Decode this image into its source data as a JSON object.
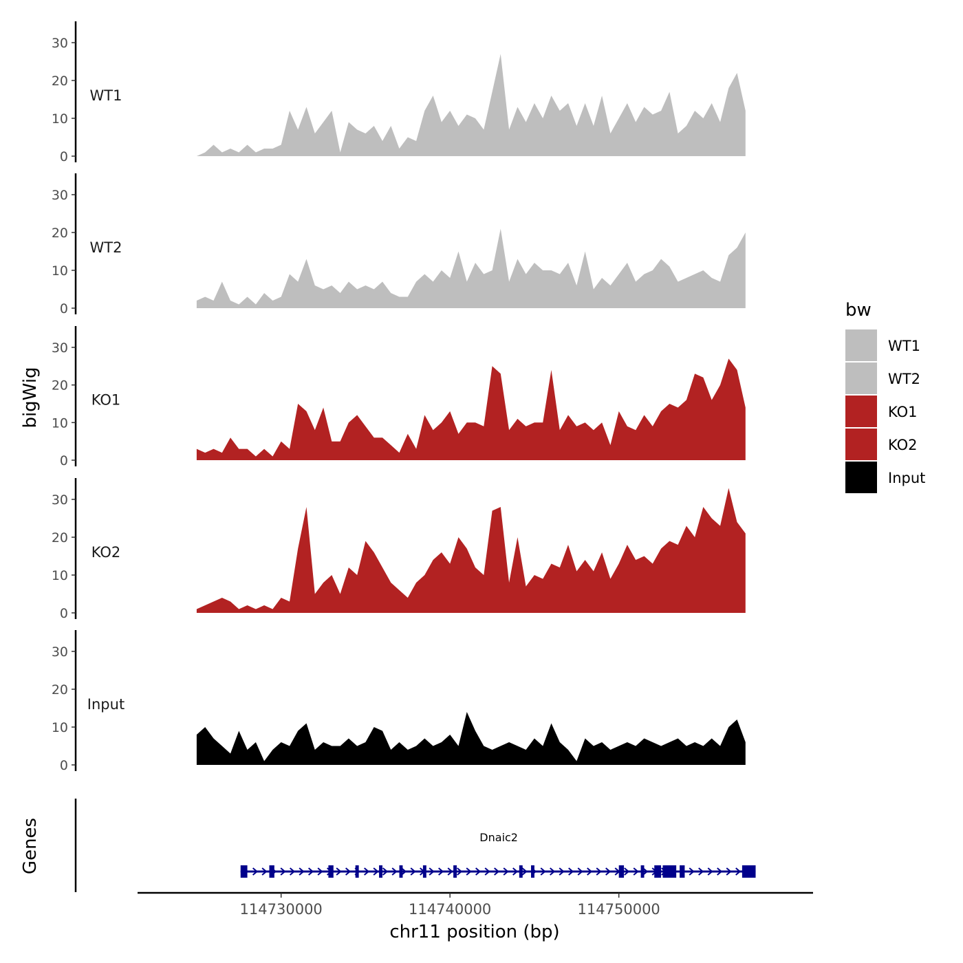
{
  "chart_data": {
    "type": "area",
    "xlabel": "chr11 position (bp)",
    "ylabel": "bigWig",
    "genes_label": "Genes",
    "x_range": [
      114725000,
      114757500
    ],
    "x_axis_range": [
      114721500,
      114761500
    ],
    "x_ticks": [
      114730000,
      114740000,
      114750000
    ],
    "x_tick_labels": [
      "114730000",
      "114740000",
      "114750000"
    ],
    "ylim": [
      0,
      35
    ],
    "y_ticks": [
      0,
      10,
      20,
      30
    ],
    "y_tick_labels": [
      "0",
      "10",
      "20",
      "30"
    ],
    "legend": {
      "title": "bw",
      "entries": [
        {
          "label": "WT1",
          "color": "#bebebe"
        },
        {
          "label": "WT2",
          "color": "#bebebe"
        },
        {
          "label": "KO1",
          "color": "#b22222"
        },
        {
          "label": "KO2",
          "color": "#b22222"
        },
        {
          "label": "Input",
          "color": "#000000"
        }
      ]
    },
    "series": [
      {
        "name": "WT1",
        "color": "#bebebe",
        "x": [
          114725000,
          114725500,
          114726000,
          114726500,
          114727000,
          114727500,
          114728000,
          114728500,
          114729000,
          114729500,
          114730000,
          114730500,
          114731000,
          114731500,
          114732000,
          114732500,
          114733000,
          114733500,
          114734000,
          114734500,
          114735000,
          114735500,
          114736000,
          114736500,
          114737000,
          114737500,
          114738000,
          114738500,
          114739000,
          114739500,
          114740000,
          114740500,
          114741000,
          114741500,
          114742000,
          114742500,
          114743000,
          114743500,
          114744000,
          114744500,
          114745000,
          114745500,
          114746000,
          114746500,
          114747000,
          114747500,
          114748000,
          114748500,
          114749000,
          114749500,
          114750000,
          114750500,
          114751000,
          114751500,
          114752000,
          114752500,
          114753000,
          114753500,
          114754000,
          114754500,
          114755000,
          114755500,
          114756000,
          114756500,
          114757000,
          114757500
        ],
        "values": [
          0,
          1,
          3,
          1,
          2,
          1,
          3,
          1,
          2,
          2,
          3,
          12,
          7,
          13,
          6,
          9,
          12,
          1,
          9,
          7,
          6,
          8,
          4,
          8,
          2,
          5,
          4,
          12,
          16,
          9,
          12,
          8,
          11,
          10,
          7,
          17,
          27,
          7,
          13,
          9,
          14,
          10,
          16,
          12,
          14,
          8,
          14,
          8,
          16,
          6,
          10,
          14,
          9,
          13,
          11,
          12,
          17,
          6,
          8,
          12,
          10,
          14,
          9,
          18,
          22,
          12
        ]
      },
      {
        "name": "WT2",
        "color": "#bebebe",
        "x": [
          114725000,
          114725500,
          114726000,
          114726500,
          114727000,
          114727500,
          114728000,
          114728500,
          114729000,
          114729500,
          114730000,
          114730500,
          114731000,
          114731500,
          114732000,
          114732500,
          114733000,
          114733500,
          114734000,
          114734500,
          114735000,
          114735500,
          114736000,
          114736500,
          114737000,
          114737500,
          114738000,
          114738500,
          114739000,
          114739500,
          114740000,
          114740500,
          114741000,
          114741500,
          114742000,
          114742500,
          114743000,
          114743500,
          114744000,
          114744500,
          114745000,
          114745500,
          114746000,
          114746500,
          114747000,
          114747500,
          114748000,
          114748500,
          114749000,
          114749500,
          114750000,
          114750500,
          114751000,
          114751500,
          114752000,
          114752500,
          114753000,
          114753500,
          114754000,
          114754500,
          114755000,
          114755500,
          114756000,
          114756500,
          114757000,
          114757500
        ],
        "values": [
          2,
          3,
          2,
          7,
          2,
          1,
          3,
          1,
          4,
          2,
          3,
          9,
          7,
          13,
          6,
          5,
          6,
          4,
          7,
          5,
          6,
          5,
          7,
          4,
          3,
          3,
          7,
          9,
          7,
          10,
          8,
          15,
          7,
          12,
          9,
          10,
          21,
          7,
          13,
          9,
          12,
          10,
          10,
          9,
          12,
          6,
          15,
          5,
          8,
          6,
          9,
          12,
          7,
          9,
          10,
          13,
          11,
          7,
          8,
          9,
          10,
          8,
          7,
          14,
          16,
          20
        ]
      },
      {
        "name": "KO1",
        "color": "#b22222",
        "x": [
          114725000,
          114725500,
          114726000,
          114726500,
          114727000,
          114727500,
          114728000,
          114728500,
          114729000,
          114729500,
          114730000,
          114730500,
          114731000,
          114731500,
          114732000,
          114732500,
          114733000,
          114733500,
          114734000,
          114734500,
          114735000,
          114735500,
          114736000,
          114736500,
          114737000,
          114737500,
          114738000,
          114738500,
          114739000,
          114739500,
          114740000,
          114740500,
          114741000,
          114741500,
          114742000,
          114742500,
          114743000,
          114743500,
          114744000,
          114744500,
          114745000,
          114745500,
          114746000,
          114746500,
          114747000,
          114747500,
          114748000,
          114748500,
          114749000,
          114749500,
          114750000,
          114750500,
          114751000,
          114751500,
          114752000,
          114752500,
          114753000,
          114753500,
          114754000,
          114754500,
          114755000,
          114755500,
          114756000,
          114756500,
          114757000,
          114757500
        ],
        "values": [
          3,
          2,
          3,
          2,
          6,
          3,
          3,
          1,
          3,
          1,
          5,
          3,
          15,
          13,
          8,
          14,
          5,
          5,
          10,
          12,
          9,
          6,
          6,
          4,
          2,
          7,
          3,
          12,
          8,
          10,
          13,
          7,
          10,
          10,
          9,
          25,
          23,
          8,
          11,
          9,
          10,
          10,
          24,
          8,
          12,
          9,
          10,
          8,
          10,
          4,
          13,
          9,
          8,
          12,
          9,
          13,
          15,
          14,
          16,
          23,
          22,
          16,
          20,
          27,
          24,
          14
        ]
      },
      {
        "name": "KO2",
        "color": "#b22222",
        "x": [
          114725000,
          114725500,
          114726000,
          114726500,
          114727000,
          114727500,
          114728000,
          114728500,
          114729000,
          114729500,
          114730000,
          114730500,
          114731000,
          114731500,
          114732000,
          114732500,
          114733000,
          114733500,
          114734000,
          114734500,
          114735000,
          114735500,
          114736000,
          114736500,
          114737000,
          114737500,
          114738000,
          114738500,
          114739000,
          114739500,
          114740000,
          114740500,
          114741000,
          114741500,
          114742000,
          114742500,
          114743000,
          114743500,
          114744000,
          114744500,
          114745000,
          114745500,
          114746000,
          114746500,
          114747000,
          114747500,
          114748000,
          114748500,
          114749000,
          114749500,
          114750000,
          114750500,
          114751000,
          114751500,
          114752000,
          114752500,
          114753000,
          114753500,
          114754000,
          114754500,
          114755000,
          114755500,
          114756000,
          114756500,
          114757000,
          114757500
        ],
        "values": [
          1,
          2,
          3,
          4,
          3,
          1,
          2,
          1,
          2,
          1,
          4,
          3,
          17,
          28,
          5,
          8,
          10,
          5,
          12,
          10,
          19,
          16,
          12,
          8,
          6,
          4,
          8,
          10,
          14,
          16,
          13,
          20,
          17,
          12,
          10,
          27,
          28,
          8,
          20,
          7,
          10,
          9,
          13,
          12,
          18,
          11,
          14,
          11,
          16,
          9,
          13,
          18,
          14,
          15,
          13,
          17,
          19,
          18,
          23,
          20,
          28,
          25,
          23,
          33,
          24,
          21
        ]
      },
      {
        "name": "Input",
        "color": "#000000",
        "x": [
          114725000,
          114725500,
          114726000,
          114726500,
          114727000,
          114727500,
          114728000,
          114728500,
          114729000,
          114729500,
          114730000,
          114730500,
          114731000,
          114731500,
          114732000,
          114732500,
          114733000,
          114733500,
          114734000,
          114734500,
          114735000,
          114735500,
          114736000,
          114736500,
          114737000,
          114737500,
          114738000,
          114738500,
          114739000,
          114739500,
          114740000,
          114740500,
          114741000,
          114741500,
          114742000,
          114742500,
          114743000,
          114743500,
          114744000,
          114744500,
          114745000,
          114745500,
          114746000,
          114746500,
          114747000,
          114747500,
          114748000,
          114748500,
          114749000,
          114749500,
          114750000,
          114750500,
          114751000,
          114751500,
          114752000,
          114752500,
          114753000,
          114753500,
          114754000,
          114754500,
          114755000,
          114755500,
          114756000,
          114756500,
          114757000,
          114757500
        ],
        "values": [
          8,
          10,
          7,
          5,
          3,
          9,
          4,
          6,
          1,
          4,
          6,
          5,
          9,
          11,
          4,
          6,
          5,
          5,
          7,
          5,
          6,
          10,
          9,
          4,
          6,
          4,
          5,
          7,
          5,
          6,
          8,
          5,
          14,
          9,
          5,
          4,
          5,
          6,
          5,
          4,
          7,
          5,
          11,
          6,
          4,
          1,
          7,
          5,
          6,
          4,
          5,
          6,
          5,
          7,
          6,
          5,
          6,
          7,
          5,
          6,
          5,
          7,
          5,
          10,
          12,
          6
        ]
      }
    ],
    "gene": {
      "name": "Dnaic2",
      "color": "#00008b",
      "start": 114727600,
      "end": 114758100,
      "exons": [
        [
          114727600,
          114728000
        ],
        [
          114729300,
          114729600
        ],
        [
          114732800,
          114733100
        ],
        [
          114734400,
          114734600
        ],
        [
          114735800,
          114736000
        ],
        [
          114737000,
          114737200
        ],
        [
          114738400,
          114738600
        ],
        [
          114740200,
          114740400
        ],
        [
          114744100,
          114744300
        ],
        [
          114744800,
          114745000
        ],
        [
          114750000,
          114750300
        ],
        [
          114751300,
          114751500
        ],
        [
          114752100,
          114752500
        ],
        [
          114752600,
          114753400
        ],
        [
          114753600,
          114753900
        ],
        [
          114757300,
          114758100
        ]
      ]
    }
  }
}
